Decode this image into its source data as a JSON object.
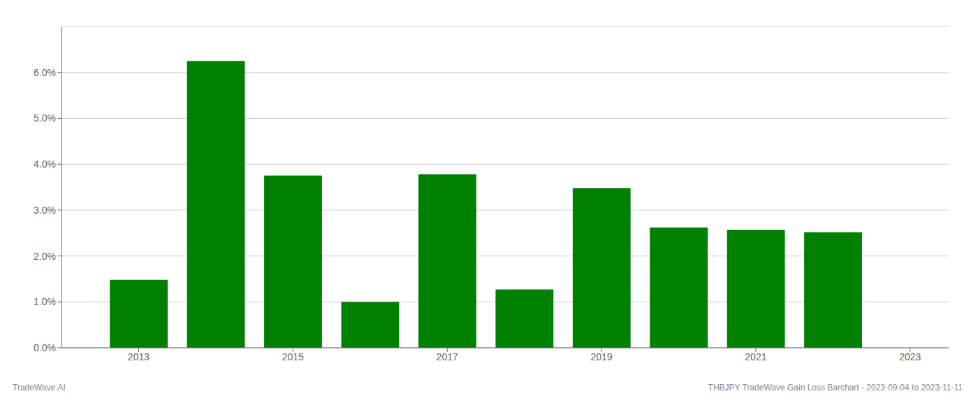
{
  "chart_data": {
    "type": "bar",
    "x": [
      2013,
      2014,
      2015,
      2016,
      2017,
      2018,
      2019,
      2020,
      2021,
      2022
    ],
    "values": [
      0.0148,
      0.0625,
      0.0375,
      0.01,
      0.0378,
      0.0127,
      0.0348,
      0.0262,
      0.0257,
      0.0252
    ],
    "color": "#008000",
    "xlim": [
      2012.0,
      2023.5
    ],
    "xticks": [
      2013,
      2015,
      2017,
      2019,
      2021,
      2023
    ],
    "ylim": [
      0,
      0.07
    ],
    "yticks": [
      {
        "value": 0.0,
        "label": "0.0%"
      },
      {
        "value": 0.01,
        "label": "1.0%"
      },
      {
        "value": 0.02,
        "label": "2.0%"
      },
      {
        "value": 0.03,
        "label": "3.0%"
      },
      {
        "value": 0.04,
        "label": "4.0%"
      },
      {
        "value": 0.05,
        "label": "5.0%"
      },
      {
        "value": 0.06,
        "label": "6.0%"
      }
    ],
    "grid": "y",
    "annotations": [
      "TradeWave.AI",
      "THBJPY TradeWave Gain Loss Barchart - 2023-09-04 to 2023-11-11"
    ]
  }
}
